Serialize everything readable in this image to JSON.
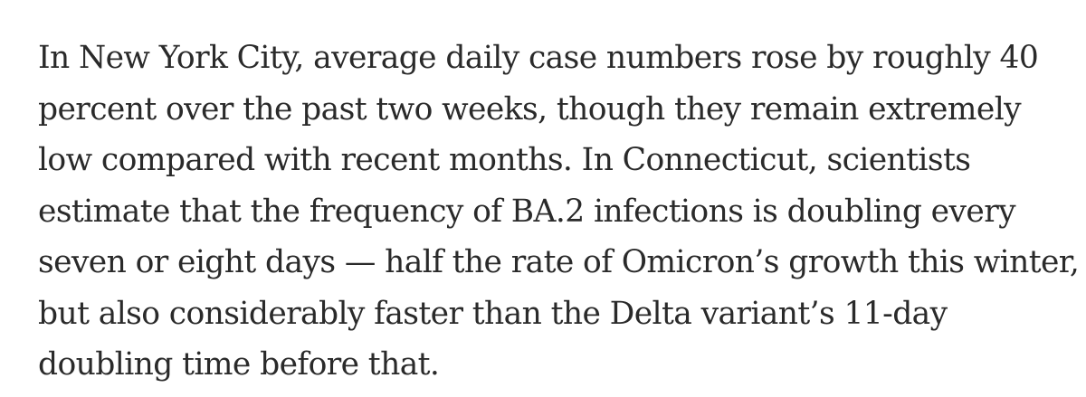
{
  "article": {
    "paragraph_lines": [
      "In New York City, average daily case numbers rose by roughly 40",
      "percent over the past two weeks, though they remain extremely",
      "low compared with recent months. In Connecticut, scientists",
      "estimate that the frequency of BA.2 infections is doubling every",
      "seven or eight days — half the rate of Omicron’s growth this winter,",
      "but also considerably faster than the Delta variant’s 11-day",
      "doubling time before that."
    ],
    "text_color": "#2a2a2a",
    "background_color": "#ffffff"
  }
}
